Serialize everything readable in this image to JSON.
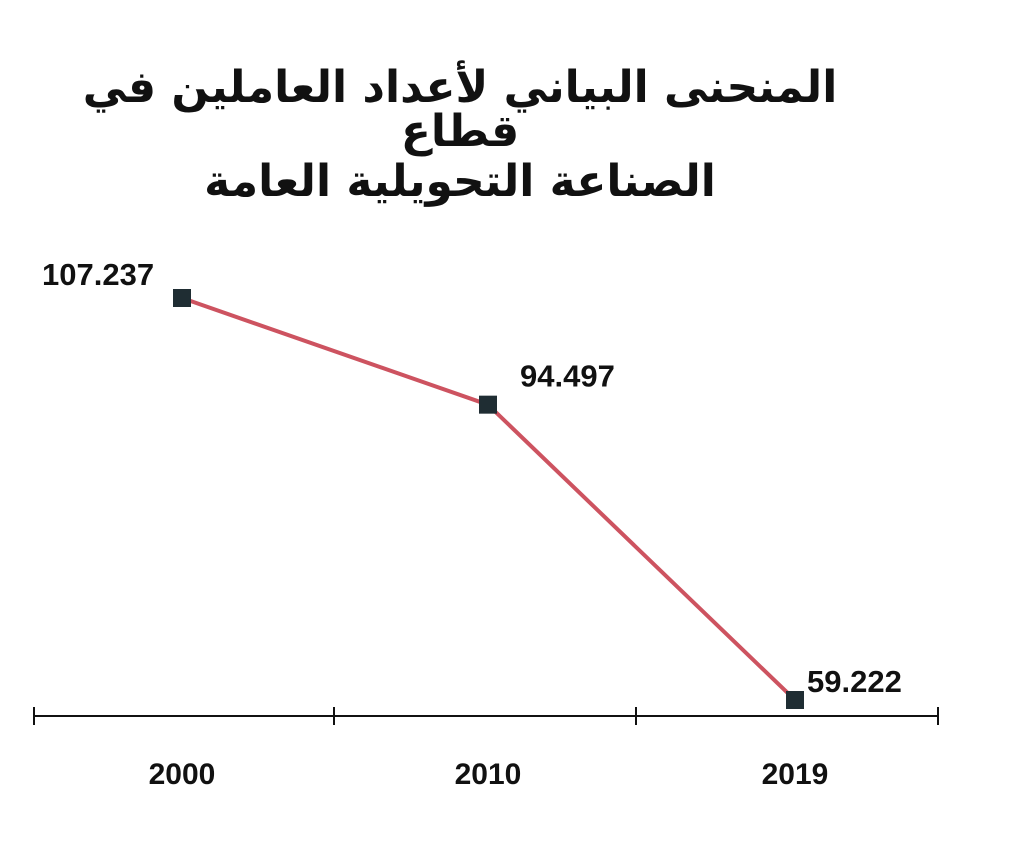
{
  "chart_data": {
    "type": "line",
    "title_lines": [
      "المنحنى البياني لأعداد العاملين في قطاع",
      "الصناعة التحويلية العامة"
    ],
    "categories": [
      "2000",
      "2010",
      "2019"
    ],
    "values": [
      107237,
      94497,
      59222
    ],
    "data_labels": [
      "107.237",
      "94.497",
      "59.222"
    ],
    "xlabel": "",
    "ylabel": "",
    "ylim": [
      59222,
      107237
    ],
    "grid": false,
    "legend": "none",
    "colors": {
      "line": "#cd5360",
      "marker": "#1f2d33",
      "axis": "#111111",
      "text": "#111111"
    }
  }
}
